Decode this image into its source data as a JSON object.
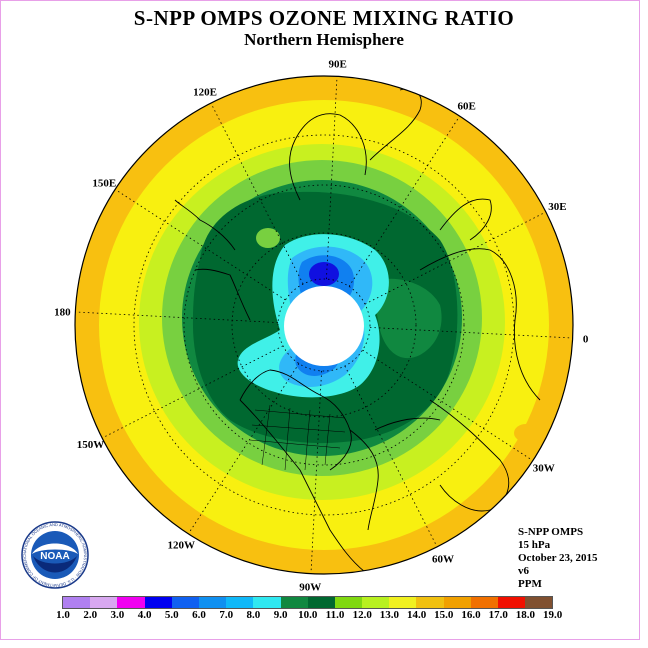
{
  "title": "S-NPP OMPS OZONE MIXING RATIO",
  "subtitle": "Northern Hemisphere",
  "longitude_labels": [
    "90E",
    "60E",
    "30E",
    "0",
    "30W",
    "60W",
    "90W",
    "120W",
    "150W",
    "180",
    "150E",
    "120E"
  ],
  "info": {
    "instrument": "S-NPP OMPS",
    "pressure": "15 hPa",
    "date": "October 23, 2015",
    "version": "v6",
    "units": "PPM"
  },
  "logo": {
    "text": "NOAA",
    "ring_text": "NATIONAL OCEANIC AND ATMOSPHERIC ADMINISTRATION · U.S. DEPARTMENT OF COMMERCE"
  },
  "colorbar": {
    "labels": [
      "1.0",
      "2.0",
      "3.0",
      "4.0",
      "5.0",
      "6.0",
      "7.0",
      "8.0",
      "9.0",
      "10.0",
      "11.0",
      "12.0",
      "13.0",
      "14.0",
      "15.0",
      "16.0",
      "17.0",
      "18.0",
      "19.0"
    ],
    "colors": [
      "#b080f0",
      "#d8a8f0",
      "#f000f0",
      "#0000f0",
      "#1060f0",
      "#1090f0",
      "#10b8f8",
      "#30e8f0",
      "#108840",
      "#006830",
      "#80d810",
      "#b8f020",
      "#f0f020",
      "#f0c010",
      "#f0a000",
      "#f07000",
      "#f01000",
      "#805030"
    ]
  },
  "map": {
    "fill_colors": {
      "pole_gap": "#ffffff",
      "deep_blue": "#1010e0",
      "blue": "#1080f0",
      "light_blue": "#30b8f8",
      "cyan": "#40f0e8",
      "dark_green": "#006830",
      "green": "#108840",
      "light_green": "#78d040",
      "yellow_green": "#c8f020",
      "yellow": "#f8f010",
      "orange_yellow": "#f8c010"
    }
  }
}
